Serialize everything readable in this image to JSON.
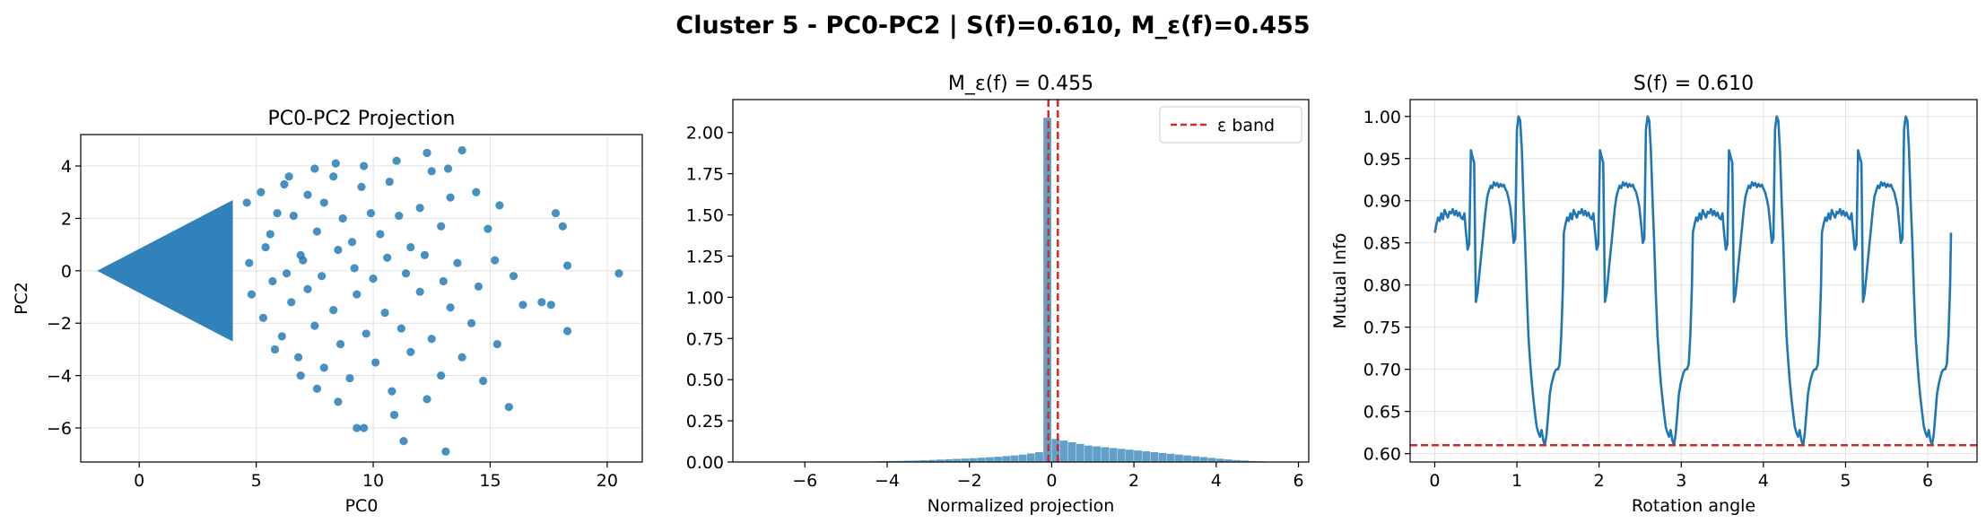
{
  "figure": {
    "suptitle": "Cluster 5 - PC0-PC2 | S(f)=0.610, M_ε(f)=0.455"
  },
  "chart_data": [
    {
      "type": "scatter",
      "title": "PC0-PC2 Projection",
      "xlabel": "PC0",
      "ylabel": "PC2",
      "xlim": [
        -2.5,
        21.5
      ],
      "ylim": [
        -7.3,
        5.2
      ],
      "xticks": [
        0,
        5,
        10,
        15,
        20
      ],
      "yticks": [
        -6,
        -4,
        -2,
        0,
        2,
        4
      ],
      "grid": true,
      "color": "#1f77b4",
      "wedge": {
        "apex": [
          -1.8,
          0.0
        ],
        "x_end": 4.0,
        "half_width_end": 2.7
      },
      "points": [
        [
          4.6,
          2.6
        ],
        [
          5.2,
          3.0
        ],
        [
          5.6,
          1.4
        ],
        [
          5.9,
          2.2
        ],
        [
          6.2,
          3.3
        ],
        [
          6.6,
          2.1
        ],
        [
          6.9,
          0.6
        ],
        [
          7.2,
          2.9
        ],
        [
          7.6,
          1.5
        ],
        [
          7.9,
          2.6
        ],
        [
          8.3,
          3.6
        ],
        [
          8.7,
          2.0
        ],
        [
          9.1,
          1.1
        ],
        [
          9.5,
          3.2
        ],
        [
          9.9,
          2.2
        ],
        [
          10.3,
          1.4
        ],
        [
          10.7,
          3.4
        ],
        [
          11.1,
          2.1
        ],
        [
          11.6,
          0.9
        ],
        [
          12.0,
          2.4
        ],
        [
          12.5,
          3.8
        ],
        [
          12.9,
          1.7
        ],
        [
          13.3,
          2.8
        ],
        [
          13.8,
          4.6
        ],
        [
          14.4,
          3.0
        ],
        [
          14.9,
          1.6
        ],
        [
          15.4,
          2.5
        ],
        [
          17.8,
          2.2
        ],
        [
          18.1,
          1.7
        ],
        [
          18.3,
          0.2
        ],
        [
          13.2,
          3.9
        ],
        [
          11.0,
          4.2
        ],
        [
          9.6,
          4.0
        ],
        [
          7.5,
          3.9
        ],
        [
          8.4,
          4.1
        ],
        [
          6.4,
          3.6
        ],
        [
          12.3,
          4.5
        ],
        [
          4.8,
          -0.9
        ],
        [
          5.3,
          -1.8
        ],
        [
          5.7,
          -0.4
        ],
        [
          6.1,
          -2.5
        ],
        [
          6.5,
          -1.2
        ],
        [
          6.8,
          -3.3
        ],
        [
          7.2,
          -0.7
        ],
        [
          7.5,
          -2.1
        ],
        [
          7.9,
          -3.7
        ],
        [
          8.3,
          -1.5
        ],
        [
          8.6,
          -2.8
        ],
        [
          9.0,
          -4.1
        ],
        [
          9.3,
          -0.9
        ],
        [
          9.7,
          -2.4
        ],
        [
          10.1,
          -3.5
        ],
        [
          10.5,
          -1.6
        ],
        [
          10.8,
          -4.6
        ],
        [
          11.2,
          -2.2
        ],
        [
          11.6,
          -3.1
        ],
        [
          12.0,
          -0.8
        ],
        [
          12.5,
          -2.6
        ],
        [
          12.9,
          -4.0
        ],
        [
          13.3,
          -1.4
        ],
        [
          13.8,
          -3.3
        ],
        [
          14.2,
          -2.0
        ],
        [
          14.7,
          -4.2
        ],
        [
          15.3,
          -2.8
        ],
        [
          15.8,
          -5.2
        ],
        [
          16.4,
          -1.3
        ],
        [
          17.2,
          -1.2
        ],
        [
          17.6,
          -1.3
        ],
        [
          18.3,
          -2.3
        ],
        [
          9.3,
          -6.0
        ],
        [
          9.6,
          -6.0
        ],
        [
          11.3,
          -6.5
        ],
        [
          13.1,
          -6.9
        ],
        [
          8.5,
          -5.0
        ],
        [
          10.9,
          -5.5
        ],
        [
          12.3,
          -4.9
        ],
        [
          6.9,
          -4.0
        ],
        [
          5.8,
          -3.0
        ],
        [
          7.6,
          -4.5
        ],
        [
          4.7,
          0.3
        ],
        [
          5.4,
          0.9
        ],
        [
          6.3,
          -0.1
        ],
        [
          7.0,
          0.4
        ],
        [
          7.8,
          -0.2
        ],
        [
          8.5,
          0.8
        ],
        [
          9.2,
          0.1
        ],
        [
          10.0,
          -0.3
        ],
        [
          10.6,
          0.5
        ],
        [
          11.4,
          -0.1
        ],
        [
          12.2,
          0.6
        ],
        [
          13.0,
          -0.4
        ],
        [
          13.6,
          0.3
        ],
        [
          14.5,
          -0.6
        ],
        [
          15.2,
          0.4
        ],
        [
          16.0,
          -0.2
        ],
        [
          20.5,
          -0.1
        ]
      ]
    },
    {
      "type": "bar",
      "title": "M_ε(f) = 0.455",
      "xlabel": "Normalized projection",
      "ylabel": "",
      "xlim": [
        -7.75,
        6.25
      ],
      "ylim": [
        0,
        2.2
      ],
      "xticks": [
        -6,
        -4,
        -2,
        0,
        2,
        4,
        6
      ],
      "yticks": [
        0.0,
        0.25,
        0.5,
        0.75,
        1.0,
        1.25,
        1.5,
        1.75,
        2.0
      ],
      "ytick_labels": [
        "0.00",
        "0.25",
        "0.50",
        "0.75",
        "1.00",
        "1.25",
        "1.50",
        "1.75",
        "2.00"
      ],
      "grid": false,
      "bar_color": "#1f77b4",
      "bin_width": 0.2,
      "bins": [
        [
          -4.6,
          0.003
        ],
        [
          -4.4,
          0.004
        ],
        [
          -4.2,
          0.005
        ],
        [
          -4.0,
          0.006
        ],
        [
          -3.8,
          0.007
        ],
        [
          -3.6,
          0.008
        ],
        [
          -3.4,
          0.009
        ],
        [
          -3.2,
          0.011
        ],
        [
          -3.0,
          0.013
        ],
        [
          -2.8,
          0.015
        ],
        [
          -2.6,
          0.017
        ],
        [
          -2.4,
          0.019
        ],
        [
          -2.2,
          0.021
        ],
        [
          -2.0,
          0.023
        ],
        [
          -1.8,
          0.026
        ],
        [
          -1.6,
          0.029
        ],
        [
          -1.4,
          0.032
        ],
        [
          -1.2,
          0.036
        ],
        [
          -1.0,
          0.04
        ],
        [
          -0.8,
          0.045
        ],
        [
          -0.6,
          0.052
        ],
        [
          -0.4,
          0.06
        ],
        [
          -0.2,
          2.09
        ],
        [
          0.0,
          0.14
        ],
        [
          0.2,
          0.13
        ],
        [
          0.4,
          0.12
        ],
        [
          0.6,
          0.11
        ],
        [
          0.8,
          0.1
        ],
        [
          1.0,
          0.095
        ],
        [
          1.2,
          0.09
        ],
        [
          1.4,
          0.085
        ],
        [
          1.6,
          0.08
        ],
        [
          1.8,
          0.075
        ],
        [
          2.0,
          0.07
        ],
        [
          2.2,
          0.065
        ],
        [
          2.4,
          0.06
        ],
        [
          2.6,
          0.055
        ],
        [
          2.8,
          0.05
        ],
        [
          3.0,
          0.045
        ],
        [
          3.2,
          0.04
        ],
        [
          3.4,
          0.035
        ],
        [
          3.6,
          0.03
        ],
        [
          3.8,
          0.025
        ],
        [
          4.0,
          0.02
        ],
        [
          4.2,
          0.016
        ],
        [
          4.4,
          0.012
        ],
        [
          4.6,
          0.009
        ],
        [
          4.8,
          0.006
        ],
        [
          5.0,
          0.004
        ]
      ],
      "vlines": [
        -0.08,
        0.15
      ],
      "vline_color": "#d62728",
      "legend": {
        "label": "ε band",
        "placement": "top-right"
      }
    },
    {
      "type": "line",
      "title": "S(f) = 0.610",
      "xlabel": "Rotation angle",
      "ylabel": "Mutual Info",
      "xlim": [
        -0.3,
        6.6
      ],
      "ylim": [
        0.59,
        1.02
      ],
      "xticks": [
        0,
        1,
        2,
        3,
        4,
        5,
        6
      ],
      "yticks": [
        0.6,
        0.65,
        0.7,
        0.75,
        0.8,
        0.85,
        0.9,
        0.95,
        1.0
      ],
      "ytick_labels": [
        "0.60",
        "0.65",
        "0.70",
        "0.75",
        "0.80",
        "0.85",
        "0.90",
        "0.95",
        "1.00"
      ],
      "grid": true,
      "line_color": "#1f77b4",
      "hline": 0.61,
      "hline_color": "#d62728",
      "period_points": [
        [
          0.0,
          0.862
        ],
        [
          0.02,
          0.872
        ],
        [
          0.04,
          0.88
        ],
        [
          0.06,
          0.876
        ],
        [
          0.08,
          0.885
        ],
        [
          0.1,
          0.878
        ],
        [
          0.12,
          0.889
        ],
        [
          0.14,
          0.884
        ],
        [
          0.16,
          0.88
        ],
        [
          0.18,
          0.887
        ],
        [
          0.2,
          0.885
        ],
        [
          0.22,
          0.89
        ],
        [
          0.24,
          0.883
        ],
        [
          0.26,
          0.888
        ],
        [
          0.28,
          0.882
        ],
        [
          0.3,
          0.886
        ],
        [
          0.32,
          0.88
        ],
        [
          0.34,
          0.878
        ],
        [
          0.36,
          0.885
        ],
        [
          0.38,
          0.862
        ],
        [
          0.4,
          0.842
        ],
        [
          0.42,
          0.848
        ],
        [
          0.44,
          0.96
        ],
        [
          0.46,
          0.952
        ],
        [
          0.48,
          0.945
        ],
        [
          0.5,
          0.78
        ],
        [
          0.52,
          0.79
        ],
        [
          0.54,
          0.81
        ],
        [
          0.56,
          0.83
        ],
        [
          0.58,
          0.85
        ],
        [
          0.6,
          0.87
        ],
        [
          0.62,
          0.89
        ],
        [
          0.64,
          0.905
        ],
        [
          0.66,
          0.912
        ],
        [
          0.68,
          0.918
        ],
        [
          0.7,
          0.915
        ],
        [
          0.72,
          0.922
        ],
        [
          0.74,
          0.918
        ],
        [
          0.76,
          0.921
        ],
        [
          0.78,
          0.916
        ],
        [
          0.8,
          0.92
        ],
        [
          0.82,
          0.917
        ],
        [
          0.84,
          0.919
        ],
        [
          0.86,
          0.914
        ],
        [
          0.88,
          0.91
        ],
        [
          0.9,
          0.902
        ],
        [
          0.92,
          0.892
        ],
        [
          0.94,
          0.873
        ],
        [
          0.96,
          0.85
        ],
        [
          0.98,
          0.855
        ],
        [
          1.0,
          0.985
        ],
        [
          1.02,
          1.0
        ],
        [
          1.04,
          0.995
        ],
        [
          1.06,
          0.96
        ],
        [
          1.08,
          0.9
        ],
        [
          1.1,
          0.85
        ],
        [
          1.12,
          0.79
        ],
        [
          1.14,
          0.74
        ],
        [
          1.16,
          0.71
        ],
        [
          1.18,
          0.685
        ],
        [
          1.2,
          0.665
        ],
        [
          1.22,
          0.648
        ],
        [
          1.24,
          0.632
        ],
        [
          1.26,
          0.625
        ],
        [
          1.28,
          0.62
        ],
        [
          1.3,
          0.628
        ],
        [
          1.32,
          0.616
        ],
        [
          1.34,
          0.61
        ],
        [
          1.36,
          0.622
        ],
        [
          1.38,
          0.645
        ],
        [
          1.4,
          0.67
        ],
        [
          1.42,
          0.682
        ],
        [
          1.44,
          0.69
        ],
        [
          1.46,
          0.697
        ],
        [
          1.48,
          0.7
        ],
        [
          1.5,
          0.7
        ],
        [
          1.52,
          0.706
        ],
        [
          1.54,
          0.74
        ],
        [
          1.56,
          0.8
        ],
        [
          1.5708,
          0.862
        ]
      ]
    }
  ]
}
